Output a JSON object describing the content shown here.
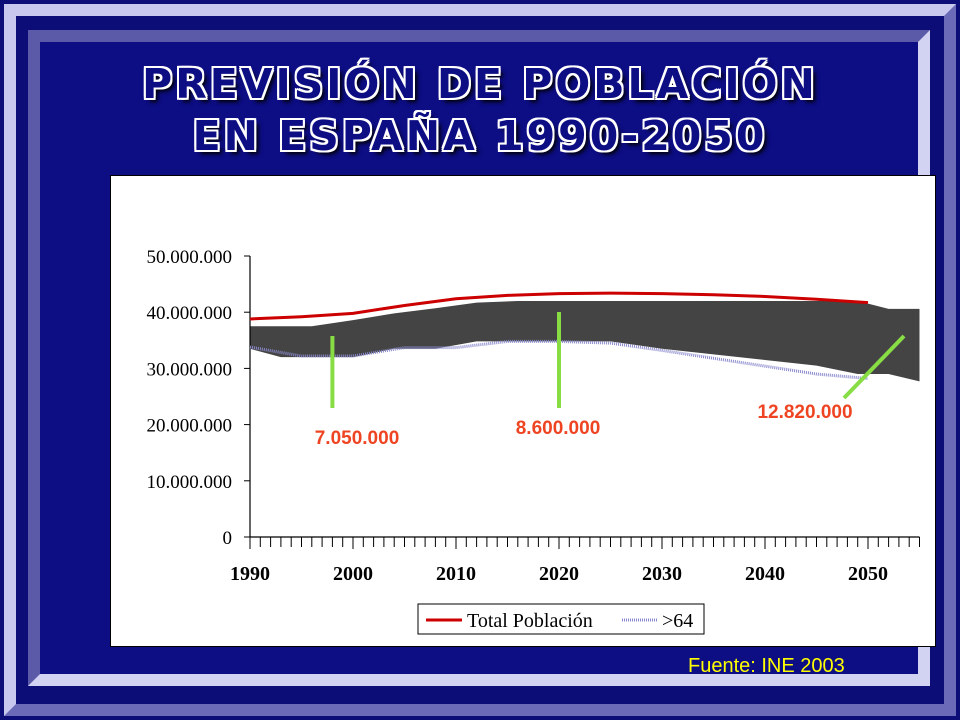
{
  "title": {
    "line1": "PREVISIÓN DE POBLACIÓN",
    "line2": "EN ESPAÑA 1990-2050"
  },
  "source": "Fuente: INE 2003",
  "colors": {
    "background": "#0d0d84",
    "total": "#cc0000",
    "over64": "#8888cc",
    "band": "#444444",
    "marker": "#88dd44",
    "annotation": "#ee4422",
    "source": "#ffff00"
  },
  "chart_data": {
    "type": "line",
    "x": [
      1990,
      1995,
      2000,
      2005,
      2010,
      2015,
      2020,
      2025,
      2030,
      2035,
      2040,
      2045,
      2050
    ],
    "xlim": [
      1990,
      2055
    ],
    "ylim": [
      0,
      50000000
    ],
    "yticks": [
      0,
      10000000,
      20000000,
      30000000,
      40000000,
      50000000
    ],
    "ytick_labels": [
      "0",
      "10.000.000",
      "20.000.000",
      "30.000.000",
      "40.000.000",
      "50.000.000"
    ],
    "xticks": [
      1990,
      2000,
      2010,
      2020,
      2030,
      2040,
      2050
    ],
    "xtick_labels": [
      "1990",
      "2000",
      "2010",
      "2020",
      "2030",
      "2040",
      "2050"
    ],
    "series": [
      {
        "name": "Total Población",
        "values": [
          38800000,
          39200000,
          39800000,
          41200000,
          42400000,
          43000000,
          43300000,
          43400000,
          43300000,
          43100000,
          42800000,
          42300000,
          41700000
        ]
      },
      {
        "name": ">64",
        "values": [
          33800000,
          32200000,
          32200000,
          33700000,
          33700000,
          34800000,
          34800000,
          34500000,
          33200000,
          31800000,
          30400000,
          29000000,
          28200000
        ]
      }
    ],
    "band": {
      "x": [
        1990,
        1993,
        1996,
        2000,
        2004,
        2008,
        2012,
        2016,
        2020,
        2025,
        2030,
        2035,
        2040,
        2045,
        2049,
        2052,
        2055
      ],
      "upper": [
        37500000,
        37500000,
        37500000,
        38600000,
        39800000,
        40700000,
        41700000,
        42000000,
        42000000,
        42000000,
        42000000,
        42000000,
        42000000,
        42000000,
        42000000,
        40600000,
        40600000
      ],
      "lower": [
        33500000,
        32000000,
        32000000,
        32000000,
        33500000,
        33500000,
        34800000,
        34800000,
        34800000,
        34800000,
        33500000,
        32500000,
        31500000,
        30500000,
        29000000,
        29000000,
        27700000
      ]
    },
    "annotations": [
      {
        "label": "7.050.000",
        "line_x": 1998
      },
      {
        "label": "8.600.000",
        "line_x": 2020
      },
      {
        "label": "12.820.000",
        "line_x": 2047
      }
    ],
    "legend_position": "bottom"
  }
}
